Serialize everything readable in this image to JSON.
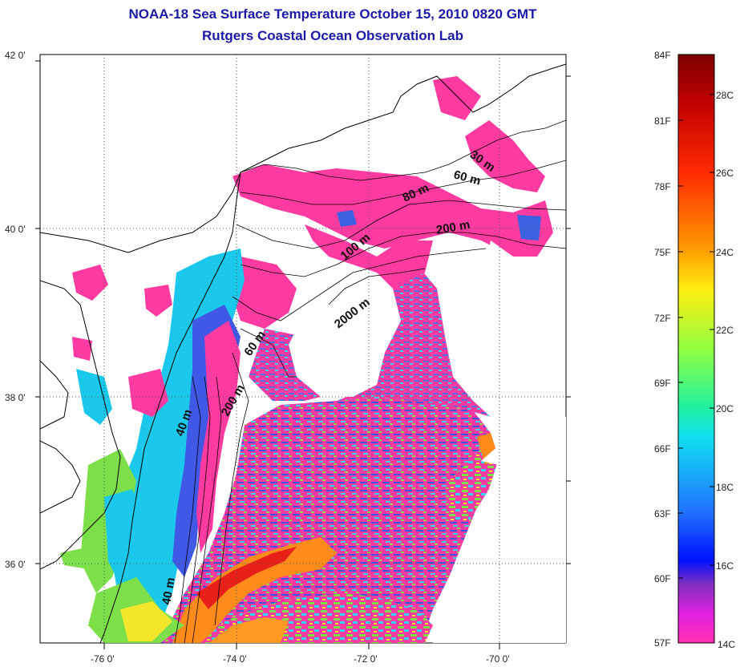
{
  "header": {
    "title_line1": "NOAA-18 Sea Surface Temperature October 15, 2010 0820 GMT",
    "title_line2": "Rutgers Coastal Ocean Observation Lab"
  },
  "axes": {
    "lat_labels": [
      "42 0'",
      "40 0'",
      "38 0'",
      "36 0'"
    ],
    "lon_labels": [
      "-76 0'",
      "-74 0'",
      "-72 0'",
      "-70 0'"
    ]
  },
  "contour_labels": [
    "30 m",
    "60 m",
    "80 m",
    "200 m",
    "100 m",
    "2000 m",
    "60 m",
    "200 m",
    "40 m",
    "40 m"
  ],
  "colorbar": {
    "f_labels": [
      "84F",
      "81F",
      "78F",
      "75F",
      "72F",
      "69F",
      "66F",
      "63F",
      "60F",
      "57F"
    ],
    "c_labels": [
      "28C",
      "26C",
      "24C",
      "22C",
      "20C",
      "18C",
      "16C",
      "14C"
    ]
  },
  "colors": {
    "pink": "#ff3aa0",
    "cyan": "#19d6ee",
    "blue": "#2a4ad8",
    "green": "#7de04a",
    "yellow": "#f4e62a",
    "orange": "#ff8c1a",
    "red": "#e8201a"
  }
}
